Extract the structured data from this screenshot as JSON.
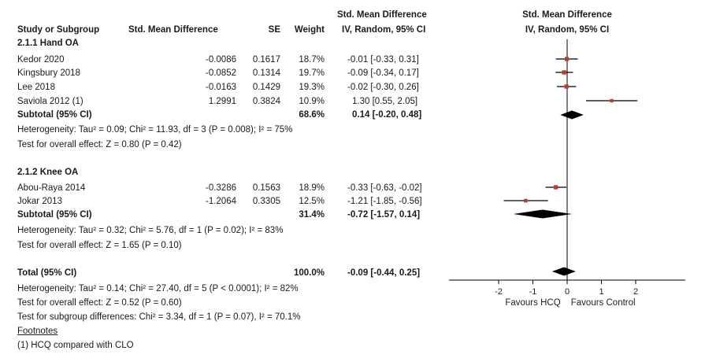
{
  "headers": {
    "study": "Study or Subgroup",
    "smd": "Std. Mean Difference",
    "se": "SE",
    "weight": "Weight",
    "ci_top": "Std. Mean Difference",
    "ci_bottom": "IV, Random, 95% CI",
    "plot_top": "Std. Mean Difference",
    "plot_bottom": "IV, Random, 95% CI"
  },
  "groups": [
    {
      "title": "2.1.1 Hand OA",
      "studies": [
        {
          "name": "Kedor 2020",
          "smd": "-0.0086",
          "se": "0.1617",
          "weight": "18.7%",
          "ci": "-0.01 [-0.33, 0.31]"
        },
        {
          "name": "Kingsbury 2018",
          "smd": "-0.0852",
          "se": "0.1314",
          "weight": "19.7%",
          "ci": "-0.09 [-0.34, 0.17]"
        },
        {
          "name": "Lee 2018",
          "smd": "-0.0163",
          "se": "0.1429",
          "weight": "19.3%",
          "ci": "-0.02 [-0.30, 0.26]"
        },
        {
          "name": "Saviola 2012 (1)",
          "smd": "1.2991",
          "se": "0.3824",
          "weight": "10.9%",
          "ci": "1.30 [0.55, 2.05]"
        }
      ],
      "subtotal": {
        "label": "Subtotal (95% CI)",
        "weight": "68.6%",
        "ci": "0.14 [-0.20, 0.48]"
      },
      "heterogeneity": "Heterogeneity: Tau² = 0.09; Chi² = 11.93, df = 3 (P = 0.008); I² = 75%",
      "overall": "Test for overall effect: Z = 0.80 (P = 0.42)"
    },
    {
      "title": "2.1.2 Knee OA",
      "studies": [
        {
          "name": "Abou-Raya 2014",
          "smd": "-0.3286",
          "se": "0.1563",
          "weight": "18.9%",
          "ci": "-0.33 [-0.63, -0.02]"
        },
        {
          "name": "Jokar 2013",
          "smd": "-1.2064",
          "se": "0.3305",
          "weight": "12.5%",
          "ci": "-1.21 [-1.85, -0.56]"
        }
      ],
      "subtotal": {
        "label": "Subtotal (95% CI)",
        "weight": "31.4%",
        "ci": "-0.72 [-1.57, 0.14]"
      },
      "heterogeneity": "Heterogeneity: Tau² = 0.32; Chi² = 5.76, df = 1 (P = 0.02); I² = 83%",
      "overall": "Test for overall effect: Z = 1.65 (P = 0.10)"
    }
  ],
  "total": {
    "label": "Total (95% CI)",
    "weight": "100.0%",
    "ci": "-0.09 [-0.44, 0.25]",
    "heterogeneity": "Heterogeneity: Tau² = 0.14; Chi² = 27.40, df = 5 (P < 0.0001); I² = 82%",
    "overall": "Test for overall effect: Z = 0.52 (P = 0.60)",
    "subgroup": "Test for subgroup differences: Chi² = 3.34, df = 1 (P = 0.07), I² = 70.1%"
  },
  "footnotes": {
    "title": "Footnotes",
    "items": [
      "(1) HCQ compared with CLO"
    ]
  },
  "chart_data": {
    "type": "scatter",
    "xlim": [
      -2,
      2
    ],
    "ticks": [
      "-2",
      "-1",
      "0",
      "1",
      "2"
    ],
    "favours_left": "Favours HCQ",
    "favours_right": "Favours Control",
    "colors": {
      "point": "#c0392b",
      "line": "#000000",
      "diamond": "#000000"
    },
    "studies": [
      {
        "name": "Kedor 2020",
        "est": -0.01,
        "lo": -0.33,
        "hi": 0.31,
        "weight": 18.7
      },
      {
        "name": "Kingsbury 2018",
        "est": -0.09,
        "lo": -0.34,
        "hi": 0.17,
        "weight": 19.7
      },
      {
        "name": "Lee 2018",
        "est": -0.02,
        "lo": -0.3,
        "hi": 0.26,
        "weight": 19.3
      },
      {
        "name": "Saviola 2012 (1)",
        "est": 1.3,
        "lo": 0.55,
        "hi": 2.05,
        "weight": 10.9
      },
      {
        "name": "Abou-Raya 2014",
        "est": -0.33,
        "lo": -0.63,
        "hi": -0.02,
        "weight": 18.9
      },
      {
        "name": "Jokar 2013",
        "est": -1.21,
        "lo": -1.85,
        "hi": -0.56,
        "weight": 12.5
      }
    ],
    "diamonds": [
      {
        "name": "Subtotal Hand OA",
        "est": 0.14,
        "lo": -0.2,
        "hi": 0.48
      },
      {
        "name": "Subtotal Knee OA",
        "est": -0.72,
        "lo": -1.57,
        "hi": 0.14
      },
      {
        "name": "Total",
        "est": -0.09,
        "lo": -0.44,
        "hi": 0.25
      }
    ]
  }
}
